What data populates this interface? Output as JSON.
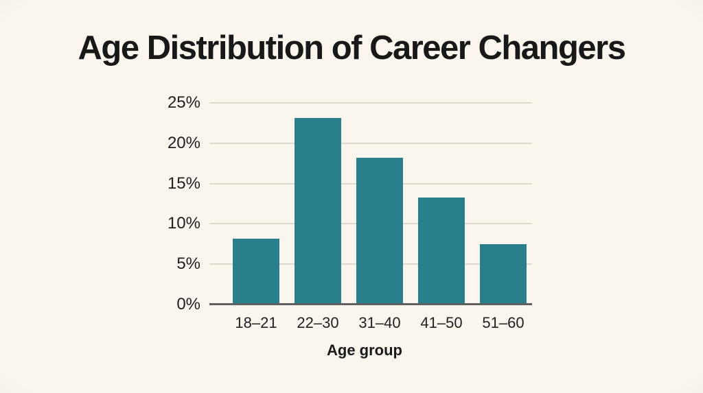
{
  "chart_data": {
    "type": "bar",
    "title": "Age Distribution of Career Changers",
    "categories": [
      "18–21",
      "22–30",
      "31–40",
      "41–50",
      "51–60"
    ],
    "values": [
      8.2,
      23.1,
      18.2,
      13.3,
      7.5
    ],
    "xlabel": "Age group",
    "ylabel": "",
    "ylim": [
      0,
      25
    ],
    "yticks": [
      0,
      5,
      10,
      15,
      20,
      25
    ],
    "ytick_suffix": "%",
    "grid": true,
    "legend": "none",
    "colors": {
      "bar": "#2a7f8c",
      "background": "#faf6ee",
      "gridline": "#ded8cf",
      "axis_line": "#5f5f5f",
      "text": "#1c1c1c"
    }
  }
}
